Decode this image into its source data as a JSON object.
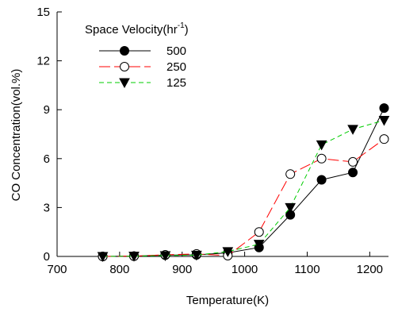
{
  "chart_data": {
    "type": "line",
    "xlabel": "Temperature(K)",
    "ylabel": "CO Concentration(vol.%)",
    "xlim": [
      700,
      1230
    ],
    "ylim": [
      0,
      15
    ],
    "xticks": [
      "700",
      "800",
      "900",
      "1000",
      "1100",
      "1200"
    ],
    "yticks": [
      "0",
      "3",
      "6",
      "9",
      "12",
      "15"
    ],
    "grid": false,
    "legend": {
      "title_main": "Space Velocity(hr",
      "title_sup": "-1",
      "title_end": ")",
      "placement": "top-left"
    },
    "x": [
      773,
      823,
      873,
      923,
      973,
      1023,
      1073,
      1123,
      1173,
      1223
    ],
    "series": [
      {
        "name": "500",
        "marker": "filled-circle",
        "dash": "solid",
        "color": "#000000",
        "values": [
          0.0,
          0.02,
          0.08,
          0.1,
          0.22,
          0.55,
          2.55,
          4.7,
          5.15,
          9.1
        ]
      },
      {
        "name": "250",
        "marker": "open-circle",
        "dash": "long-dash",
        "color": "#ff0000",
        "values": [
          0.0,
          0.02,
          0.1,
          0.15,
          0.05,
          1.5,
          5.05,
          6.0,
          5.8,
          7.2
        ]
      },
      {
        "name": "125",
        "marker": "filled-triangle-down",
        "dash": "dash",
        "color": "#00cc00",
        "values": [
          0.0,
          0.02,
          0.05,
          0.08,
          0.3,
          0.75,
          3.0,
          6.85,
          7.8,
          8.35
        ]
      }
    ]
  }
}
